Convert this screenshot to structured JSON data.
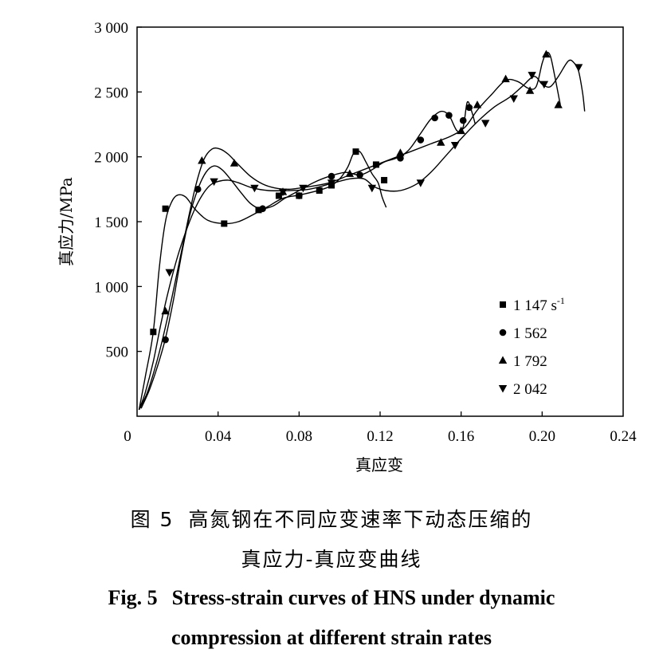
{
  "chart_data": {
    "type": "line",
    "xlabel": "真应变",
    "ylabel": "真应力/MPa",
    "xlim": [
      0,
      0.24
    ],
    "ylim": [
      0,
      3000
    ],
    "x_ticks": [
      "0",
      "0.04",
      "0.08",
      "0.12",
      "0.16",
      "0.20",
      "0.24"
    ],
    "x_tick_values": [
      0,
      0.04,
      0.08,
      0.12,
      0.16,
      0.2,
      0.24
    ],
    "y_ticks": [
      "500",
      "1 000",
      "1 500",
      "2 000",
      "2 500",
      "3 000"
    ],
    "y_tick_values": [
      500,
      1000,
      1500,
      2000,
      2500,
      3000
    ],
    "legend_position": "bottom-right",
    "series": [
      {
        "name": "1 147 s",
        "superscript": "-1",
        "marker": "square",
        "curve": [
          [
            0.001,
            50
          ],
          [
            0.004,
            300
          ],
          [
            0.008,
            650
          ],
          [
            0.011,
            1150
          ],
          [
            0.014,
            1500
          ],
          [
            0.017,
            1650
          ],
          [
            0.02,
            1705
          ],
          [
            0.024,
            1690
          ],
          [
            0.029,
            1590
          ],
          [
            0.035,
            1510
          ],
          [
            0.043,
            1485
          ],
          [
            0.05,
            1500
          ],
          [
            0.058,
            1560
          ],
          [
            0.065,
            1620
          ],
          [
            0.072,
            1680
          ],
          [
            0.08,
            1705
          ],
          [
            0.087,
            1730
          ],
          [
            0.095,
            1770
          ],
          [
            0.1,
            1830
          ],
          [
            0.104,
            1920
          ],
          [
            0.107,
            2030
          ],
          [
            0.11,
            2040
          ],
          [
            0.113,
            1960
          ],
          [
            0.116,
            1870
          ],
          [
            0.119,
            1800
          ],
          [
            0.121,
            1690
          ],
          [
            0.123,
            1610
          ]
        ],
        "markers": [
          [
            0.008,
            650
          ],
          [
            0.014,
            1600
          ],
          [
            0.043,
            1485
          ],
          [
            0.06,
            1590
          ],
          [
            0.07,
            1700
          ],
          [
            0.08,
            1700
          ],
          [
            0.09,
            1740
          ],
          [
            0.096,
            1780
          ],
          [
            0.108,
            2040
          ],
          [
            0.118,
            1940
          ],
          [
            0.122,
            1820
          ]
        ]
      },
      {
        "name": "1 562",
        "marker": "circle",
        "curve": [
          [
            0.002,
            60
          ],
          [
            0.006,
            200
          ],
          [
            0.01,
            380
          ],
          [
            0.014,
            600
          ],
          [
            0.018,
            900
          ],
          [
            0.022,
            1250
          ],
          [
            0.026,
            1550
          ],
          [
            0.03,
            1750
          ],
          [
            0.034,
            1880
          ],
          [
            0.038,
            1930
          ],
          [
            0.042,
            1900
          ],
          [
            0.046,
            1830
          ],
          [
            0.051,
            1730
          ],
          [
            0.056,
            1640
          ],
          [
            0.061,
            1600
          ],
          [
            0.067,
            1620
          ],
          [
            0.073,
            1680
          ],
          [
            0.08,
            1740
          ],
          [
            0.087,
            1800
          ],
          [
            0.095,
            1850
          ],
          [
            0.103,
            1880
          ],
          [
            0.11,
            1860
          ],
          [
            0.116,
            1900
          ],
          [
            0.122,
            1960
          ],
          [
            0.128,
            1990
          ],
          [
            0.134,
            2050
          ],
          [
            0.14,
            2180
          ],
          [
            0.145,
            2290
          ],
          [
            0.15,
            2350
          ],
          [
            0.154,
            2320
          ],
          [
            0.158,
            2200
          ],
          [
            0.161,
            2230
          ],
          [
            0.163,
            2420
          ],
          [
            0.165,
            2360
          ],
          [
            0.167,
            2250
          ]
        ],
        "markers": [
          [
            0.014,
            590
          ],
          [
            0.03,
            1750
          ],
          [
            0.062,
            1600
          ],
          [
            0.08,
            1700
          ],
          [
            0.096,
            1850
          ],
          [
            0.11,
            1860
          ],
          [
            0.13,
            1990
          ],
          [
            0.14,
            2130
          ],
          [
            0.147,
            2300
          ],
          [
            0.154,
            2320
          ],
          [
            0.161,
            2280
          ],
          [
            0.164,
            2380
          ]
        ]
      },
      {
        "name": "1 792",
        "marker": "triangle-up",
        "curve": [
          [
            0.001,
            50
          ],
          [
            0.005,
            180
          ],
          [
            0.009,
            380
          ],
          [
            0.013,
            620
          ],
          [
            0.017,
            900
          ],
          [
            0.021,
            1200
          ],
          [
            0.025,
            1500
          ],
          [
            0.029,
            1780
          ],
          [
            0.033,
            1980
          ],
          [
            0.037,
            2060
          ],
          [
            0.041,
            2060
          ],
          [
            0.045,
            2020
          ],
          [
            0.05,
            1940
          ],
          [
            0.056,
            1850
          ],
          [
            0.062,
            1790
          ],
          [
            0.068,
            1760
          ],
          [
            0.075,
            1750
          ],
          [
            0.085,
            1770
          ],
          [
            0.095,
            1800
          ],
          [
            0.105,
            1860
          ],
          [
            0.115,
            1920
          ],
          [
            0.125,
            1980
          ],
          [
            0.135,
            2040
          ],
          [
            0.145,
            2100
          ],
          [
            0.155,
            2160
          ],
          [
            0.162,
            2230
          ],
          [
            0.168,
            2360
          ],
          [
            0.175,
            2480
          ],
          [
            0.182,
            2590
          ],
          [
            0.188,
            2580
          ],
          [
            0.193,
            2530
          ],
          [
            0.197,
            2540
          ],
          [
            0.2,
            2720
          ],
          [
            0.202,
            2800
          ],
          [
            0.204,
            2780
          ],
          [
            0.206,
            2640
          ],
          [
            0.208,
            2480
          ],
          [
            0.209,
            2400
          ]
        ],
        "markers": [
          [
            0.014,
            810
          ],
          [
            0.032,
            1970
          ],
          [
            0.048,
            1950
          ],
          [
            0.072,
            1730
          ],
          [
            0.105,
            1870
          ],
          [
            0.13,
            2030
          ],
          [
            0.15,
            2110
          ],
          [
            0.16,
            2200
          ],
          [
            0.168,
            2400
          ],
          [
            0.182,
            2600
          ],
          [
            0.194,
            2510
          ],
          [
            0.202,
            2790
          ],
          [
            0.208,
            2400
          ]
        ]
      },
      {
        "name": "2 042",
        "marker": "triangle-down",
        "curve": [
          [
            0.001,
            50
          ],
          [
            0.004,
            180
          ],
          [
            0.008,
            420
          ],
          [
            0.012,
            730
          ],
          [
            0.016,
            1000
          ],
          [
            0.02,
            1230
          ],
          [
            0.024,
            1420
          ],
          [
            0.028,
            1580
          ],
          [
            0.032,
            1700
          ],
          [
            0.036,
            1780
          ],
          [
            0.04,
            1810
          ],
          [
            0.045,
            1820
          ],
          [
            0.05,
            1800
          ],
          [
            0.057,
            1760
          ],
          [
            0.065,
            1740
          ],
          [
            0.075,
            1740
          ],
          [
            0.085,
            1750
          ],
          [
            0.095,
            1790
          ],
          [
            0.105,
            1830
          ],
          [
            0.112,
            1830
          ],
          [
            0.117,
            1770
          ],
          [
            0.123,
            1740
          ],
          [
            0.13,
            1740
          ],
          [
            0.138,
            1790
          ],
          [
            0.145,
            1880
          ],
          [
            0.152,
            2000
          ],
          [
            0.16,
            2140
          ],
          [
            0.168,
            2270
          ],
          [
            0.176,
            2380
          ],
          [
            0.184,
            2460
          ],
          [
            0.19,
            2540
          ],
          [
            0.196,
            2620
          ],
          [
            0.2,
            2560
          ],
          [
            0.204,
            2540
          ],
          [
            0.208,
            2620
          ],
          [
            0.213,
            2740
          ],
          [
            0.216,
            2720
          ],
          [
            0.218,
            2660
          ],
          [
            0.22,
            2490
          ],
          [
            0.221,
            2350
          ]
        ],
        "markers": [
          [
            0.016,
            1110
          ],
          [
            0.038,
            1810
          ],
          [
            0.058,
            1760
          ],
          [
            0.072,
            1730
          ],
          [
            0.082,
            1760
          ],
          [
            0.096,
            1800
          ],
          [
            0.116,
            1760
          ],
          [
            0.14,
            1800
          ],
          [
            0.157,
            2090
          ],
          [
            0.172,
            2260
          ],
          [
            0.186,
            2450
          ],
          [
            0.195,
            2630
          ],
          [
            0.201,
            2560
          ],
          [
            0.218,
            2690
          ]
        ]
      }
    ]
  },
  "caption": {
    "cn_prefix": "图 5",
    "cn_line1": "高氮钢在不同应变速率下动态压缩的",
    "cn_line2": "真应力-真应变曲线",
    "en_prefix": "Fig. 5",
    "en_line1": "Stress-strain curves of HNS under dynamic",
    "en_line2": "compression at different strain rates"
  }
}
